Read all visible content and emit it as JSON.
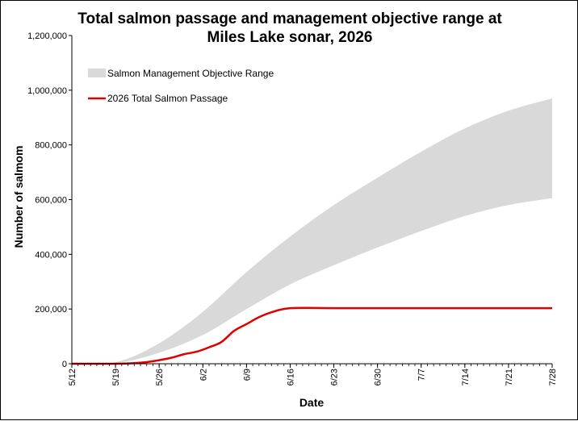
{
  "chart_data": {
    "type": "area",
    "title_line1": "Total salmon passage and management objective range at",
    "title_line2": "Miles Lake sonar, 2026",
    "xlabel": "Date",
    "ylabel": "Number of salmom",
    "ylim": [
      0,
      1200000
    ],
    "yticks": [
      0,
      200000,
      400000,
      600000,
      800000,
      1000000,
      1200000
    ],
    "ytick_labels": [
      "0",
      "200,000",
      "400,000",
      "600,000",
      "800,000",
      "1,000,000",
      "1,200,000"
    ],
    "xlim": [
      "2026-05-12",
      "2026-07-28"
    ],
    "xtick_labels": [
      "5/12",
      "5/19",
      "5/26",
      "6/2",
      "6/9",
      "6/16",
      "6/23",
      "6/30",
      "7/7",
      "7/14",
      "7/21",
      "7/28"
    ],
    "xtick_dates": [
      "2026-05-12",
      "2026-05-19",
      "2026-05-26",
      "2026-06-02",
      "2026-06-09",
      "2026-06-16",
      "2026-06-23",
      "2026-06-30",
      "2026-07-07",
      "2026-07-14",
      "2026-07-21",
      "2026-07-28"
    ],
    "grid": false,
    "legend_position": "top-left",
    "series": [
      {
        "name": "Salmon Management Objective Range",
        "type": "band",
        "color": "#d9d9d9",
        "x": [
          "2026-05-12",
          "2026-05-19",
          "2026-05-26",
          "2026-06-02",
          "2026-06-09",
          "2026-06-16",
          "2026-06-23",
          "2026-06-30",
          "2026-07-07",
          "2026-07-14",
          "2026-07-21",
          "2026-07-28"
        ],
        "lower": [
          0,
          2000,
          40000,
          105000,
          200000,
          290000,
          360000,
          425000,
          485000,
          540000,
          580000,
          605000
        ],
        "upper": [
          0,
          5000,
          75000,
          190000,
          335000,
          465000,
          580000,
          680000,
          775000,
          860000,
          925000,
          970000
        ]
      },
      {
        "name": "2026 Total Salmon Passage",
        "type": "line",
        "color": "#e00000",
        "x": [
          "2026-05-12",
          "2026-05-19",
          "2026-05-22",
          "2026-05-24",
          "2026-05-26",
          "2026-05-28",
          "2026-05-30",
          "2026-06-01",
          "2026-06-03",
          "2026-06-05",
          "2026-06-07",
          "2026-06-09",
          "2026-06-11",
          "2026-06-13",
          "2026-06-16",
          "2026-06-23",
          "2026-06-30",
          "2026-07-07",
          "2026-07-14",
          "2026-07-21",
          "2026-07-28"
        ],
        "values": [
          0,
          0,
          2000,
          6000,
          13000,
          22000,
          35000,
          44000,
          60000,
          80000,
          120000,
          145000,
          170000,
          188000,
          203000,
          203000,
          203000,
          203000,
          203000,
          203000,
          203000
        ]
      }
    ]
  }
}
